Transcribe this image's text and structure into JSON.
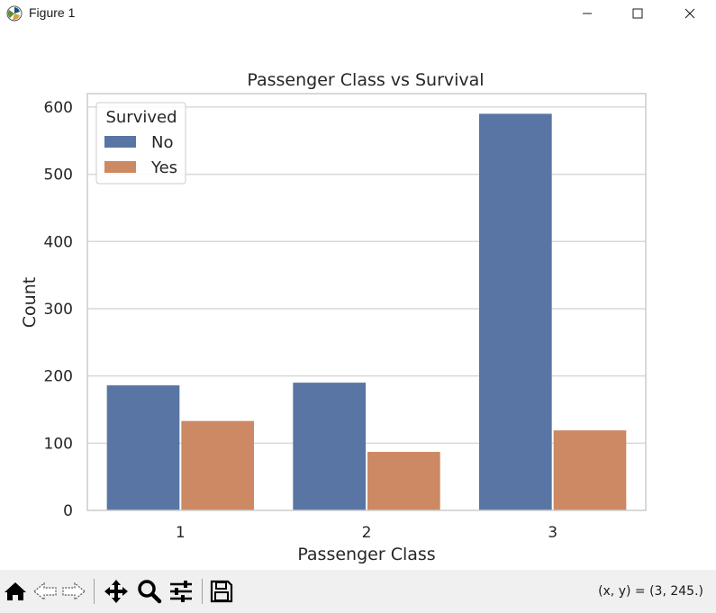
{
  "window": {
    "title": "Figure 1",
    "minimize_glyph": "—",
    "maximize_glyph": "☐",
    "close_glyph": "✕"
  },
  "toolbar": {
    "buttons": [
      {
        "name": "home-icon",
        "tooltip": "Reset original view"
      },
      {
        "name": "back-icon",
        "tooltip": "Back"
      },
      {
        "name": "forward-icon",
        "tooltip": "Forward"
      },
      {
        "name": "pan-icon",
        "tooltip": "Pan"
      },
      {
        "name": "zoom-icon",
        "tooltip": "Zoom"
      },
      {
        "name": "configure-icon",
        "tooltip": "Configure subplots"
      },
      {
        "name": "save-icon",
        "tooltip": "Save the figure"
      }
    ],
    "coords": "(x, y) = (3, 245.)"
  },
  "colors": {
    "no": "#5875a4",
    "yes": "#cc8963",
    "grid": "#d9d9d9",
    "text": "#262626"
  },
  "chart_data": {
    "type": "bar",
    "title": "Passenger Class vs Survival",
    "xlabel": "Passenger Class",
    "ylabel": "Count",
    "categories": [
      "1",
      "2",
      "3"
    ],
    "series": [
      {
        "name": "No",
        "values": [
          186,
          190,
          590
        ]
      },
      {
        "name": "Yes",
        "values": [
          133,
          87,
          119
        ]
      }
    ],
    "ylim": [
      0,
      620
    ],
    "yticks": [
      "0",
      "100",
      "200",
      "300",
      "400",
      "500",
      "600"
    ],
    "grid": true,
    "legend": {
      "title": "Survived",
      "placement": "top-left",
      "entries": [
        "No",
        "Yes"
      ]
    }
  }
}
